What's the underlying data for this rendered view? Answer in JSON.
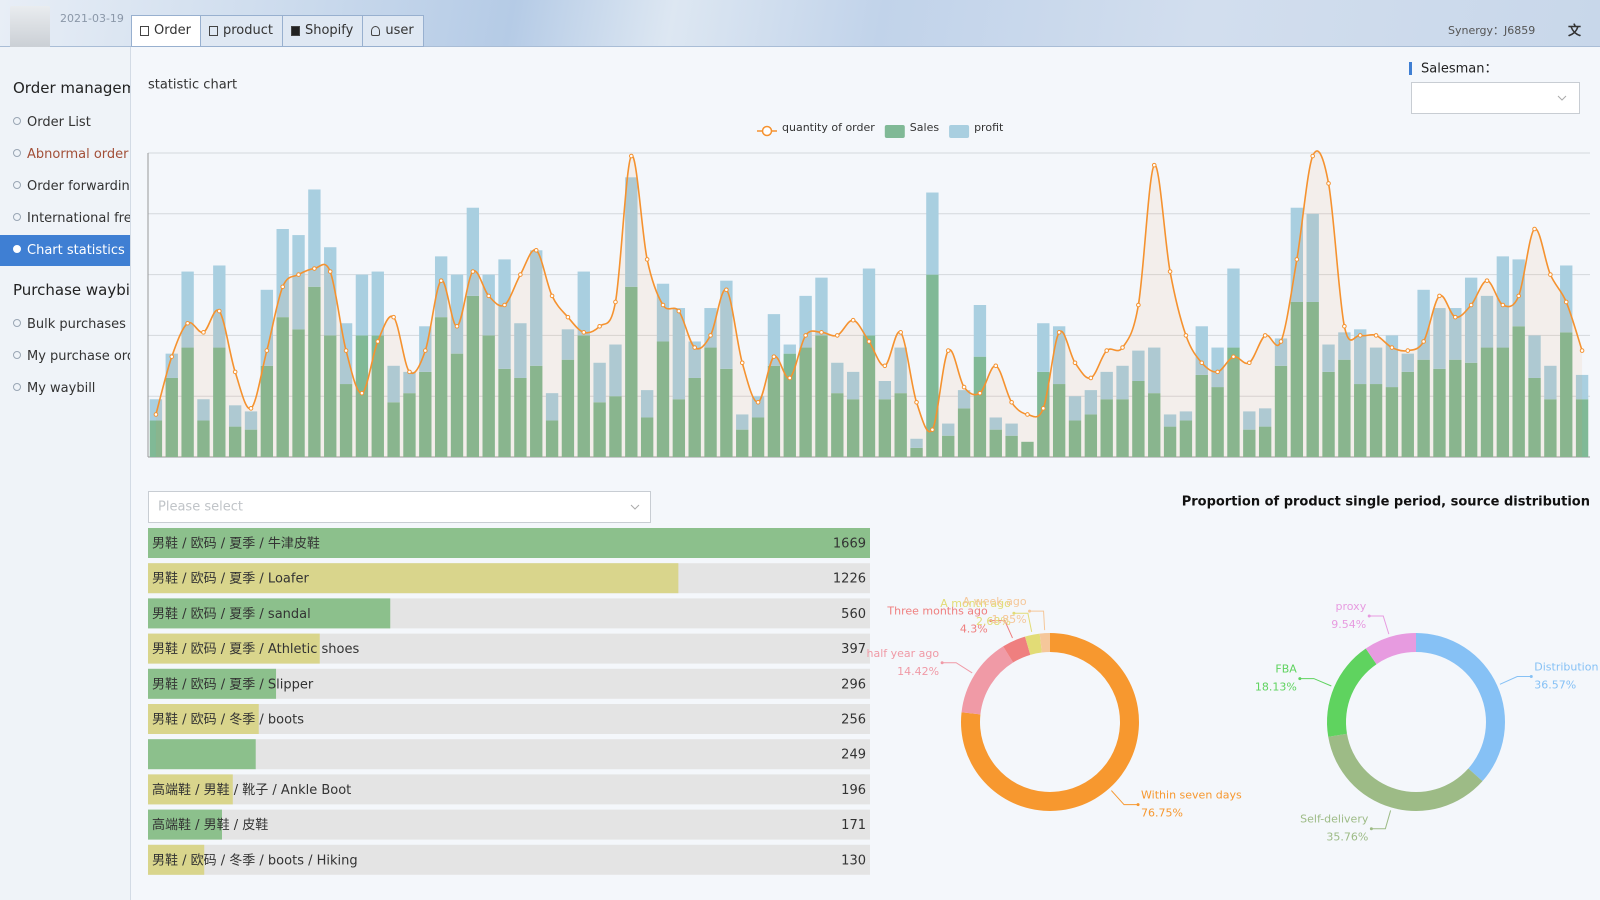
{
  "header": {
    "date": "2021-03-19",
    "tabs": [
      "Order",
      "product",
      "Shopify",
      "user"
    ],
    "synergy": "Synergy：J6859"
  },
  "sidebar": {
    "sections": [
      {
        "title": "Order management",
        "items": [
          "Order List",
          "Abnormal order",
          "Order forwarding",
          "International freight",
          "Chart statistics"
        ]
      },
      {
        "title": "Purchase waybill",
        "items": [
          "Bulk purchases",
          "My purchase order",
          "My waybill"
        ]
      }
    ]
  },
  "main": {
    "title": "statistic chart",
    "salesman_label": "Salesman：",
    "select_placeholder": "Please select",
    "distribution_title": "Proportion of product single period, source distribution"
  },
  "chart_data": [
    {
      "type": "bar",
      "stacked": true,
      "ylim": [
        0,
        100
      ],
      "yticks": [
        0,
        20,
        40,
        60,
        80,
        100
      ],
      "grid": true,
      "series": [
        {
          "name": "quantity of order",
          "type": "line",
          "color": "#f5922f",
          "values": [
            14,
            33,
            44,
            41,
            48,
            28,
            16,
            35,
            56,
            60,
            62,
            61,
            35,
            21,
            38,
            46,
            28,
            35,
            58,
            43,
            61,
            53,
            50,
            60,
            68,
            53,
            46,
            41,
            43,
            51,
            99,
            65,
            50,
            48,
            36,
            40,
            55,
            31,
            18,
            33,
            26,
            40,
            41,
            40,
            45,
            38,
            30,
            41,
            18,
            9,
            35,
            23,
            21,
            30,
            18,
            14,
            16,
            41,
            31,
            26,
            35,
            36,
            50,
            96,
            61,
            40,
            31,
            28,
            33,
            31,
            40,
            38,
            65,
            99,
            90,
            43,
            40,
            40,
            36,
            35,
            38,
            53,
            46,
            50,
            58,
            50,
            53,
            75,
            60,
            51,
            35
          ]
        },
        {
          "name": "Sales",
          "color": "#80b996",
          "values": [
            12,
            26,
            36,
            12,
            36,
            10,
            9,
            30,
            46,
            42,
            56,
            40,
            24,
            40,
            40,
            18,
            21,
            28,
            46,
            34,
            53,
            40,
            29,
            26,
            30,
            12,
            32,
            40,
            18,
            20,
            56,
            13,
            38,
            19,
            26,
            36,
            29,
            9,
            13,
            30,
            34,
            36,
            40,
            21,
            19,
            40,
            19,
            21,
            3,
            60,
            7,
            16,
            33,
            9,
            7,
            5,
            28,
            24,
            12,
            14,
            19,
            19,
            25,
            21,
            10,
            12,
            27,
            23,
            36,
            9,
            10,
            30,
            51,
            51,
            28,
            32,
            24,
            24,
            23,
            28,
            32,
            29,
            32,
            31,
            36,
            36,
            43,
            26,
            19,
            41,
            19
          ]
        },
        {
          "name": "profit",
          "color": "#a9cfe0",
          "values": [
            7,
            8,
            25,
            7,
            27,
            7,
            6,
            25,
            29,
            31,
            32,
            29,
            20,
            20,
            21,
            12,
            7,
            15,
            20,
            26,
            29,
            20,
            36,
            18,
            38,
            9,
            10,
            21,
            13,
            17,
            36,
            9,
            19,
            30,
            12,
            13,
            29,
            5,
            7,
            17,
            3,
            17,
            19,
            10,
            9,
            22,
            6,
            15,
            3,
            27,
            4,
            6,
            17,
            4,
            4,
            0,
            16,
            19,
            8,
            8,
            9,
            11,
            10,
            15,
            4,
            3,
            16,
            13,
            26,
            6,
            6,
            9,
            31,
            29,
            9,
            9,
            18,
            12,
            17,
            6,
            23,
            20,
            17,
            28,
            17,
            30,
            22,
            14,
            11,
            22,
            8
          ]
        }
      ]
    },
    {
      "type": "hbar",
      "categories": [
        "男鞋 / 欧码 / 夏季 / 牛津皮鞋",
        "男鞋 / 欧码 / 夏季 / Loafer",
        "男鞋 / 欧码 / 夏季 / sandal",
        "男鞋 / 欧码 / 夏季 / Athletic shoes",
        "男鞋 / 欧码 / 夏季 / Slipper",
        "男鞋 / 欧码 / 冬季 / boots",
        null,
        "高端鞋 / 男鞋 / 靴子 / Ankle Boot",
        "高端鞋 / 男鞋 / 皮鞋",
        "男鞋 / 欧码 / 冬季 / boots / Hiking"
      ],
      "values": [
        1669,
        1226,
        560,
        397,
        296,
        256,
        249,
        196,
        171,
        130
      ],
      "colors": [
        "#8cc08c",
        "#d9d58c"
      ]
    },
    {
      "type": "pie",
      "donut": true,
      "categories": [
        "Within seven days",
        "half year ago",
        "Three months ago",
        "A month ago",
        "A week ago"
      ],
      "values": [
        76.75,
        14.42,
        4.3,
        2.68,
        1.85
      ],
      "value_labels": [
        "76.75%",
        "14.42%",
        "4.3%",
        "2.68%",
        "1.85%"
      ],
      "colors": [
        "#f7982f",
        "#f09aa6",
        "#ef7f7f",
        "#e2dc76",
        "#f5c79a"
      ]
    },
    {
      "type": "pie",
      "donut": true,
      "categories": [
        "Distribution",
        "Self-delivery",
        "FBA",
        "proxy"
      ],
      "values": [
        36.57,
        35.76,
        18.13,
        9.54
      ],
      "value_labels": [
        "36.57%",
        "35.76%",
        "18.13%",
        "9.54%"
      ],
      "colors": [
        "#86c1f5",
        "#9dbb86",
        "#5fd35f",
        "#e79be0"
      ]
    }
  ]
}
